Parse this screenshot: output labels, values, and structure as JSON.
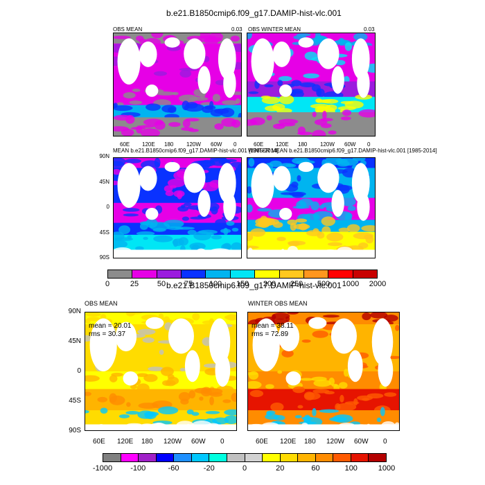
{
  "top": {
    "title": "b.e21.B1850cmip6.f09_g17.DAMIP-hist-vlc.001",
    "panel_obs_mean": {
      "label": "OBS MEAN",
      "value": "0.03"
    },
    "panel_obs_winter": {
      "label": "OBS WINTER MEAN",
      "value": "0.03"
    },
    "panel_model_mean": {
      "label": "MEAN b.e21.B1850cmip6.f09_g17.DAMIP-hist-vlc.001 [1985-2014]"
    },
    "panel_model_winter": {
      "label": "WINTER MEAN b.e21.B1850cmip6.f09_g17.DAMIP-hist-vlc.001 [1985-2014]"
    },
    "lon_ticks": [
      "60E",
      "120E",
      "180",
      "120W",
      "60W",
      "0"
    ],
    "lat_ticks": [
      "90N",
      "45N",
      "0",
      "45S",
      "90S"
    ],
    "colorbar": {
      "colors": [
        "#8c8c8c",
        "#e600e6",
        "#9b1cde",
        "#0a32ff",
        "#00b4f0",
        "#00e6f5",
        "#ffff00",
        "#ffc81e",
        "#ff961e",
        "#ff0000",
        "#c80000"
      ],
      "labels": [
        "0",
        "25",
        "50",
        "75",
        "100",
        "150",
        "200",
        "250",
        "500",
        "1000",
        "2000"
      ]
    }
  },
  "bottom": {
    "title": "b.e21.B1850cmip6.f09_g17.DAMIP-hist-vlc.001",
    "panel_obs_mean": {
      "label": "OBS MEAN",
      "mean": "mean = 20.01",
      "rms": "rms = 30.37"
    },
    "panel_obs_winter": {
      "label": "WINTER OBS MEAN",
      "mean": "mean = 38.11",
      "rms": "rms = 72.89"
    },
    "lon_ticks": [
      "60E",
      "120E",
      "180",
      "120W",
      "60W",
      "0"
    ],
    "lat_ticks": [
      "90N",
      "45N",
      "0",
      "45S",
      "90S"
    ],
    "colorbar": {
      "colors": [
        "#808080",
        "#ff00ff",
        "#a020c8",
        "#0000ff",
        "#1e90ff",
        "#00c8ff",
        "#00ffe0",
        "#c0c0c0",
        "#d2d2d2",
        "#ffff00",
        "#ffdc00",
        "#ffb400",
        "#ff8c00",
        "#ff5a00",
        "#e61400",
        "#b40000"
      ],
      "labels": [
        "-1000",
        "-100",
        "-60",
        "-20",
        "0",
        "20",
        "60",
        "100",
        "1000"
      ]
    }
  }
}
